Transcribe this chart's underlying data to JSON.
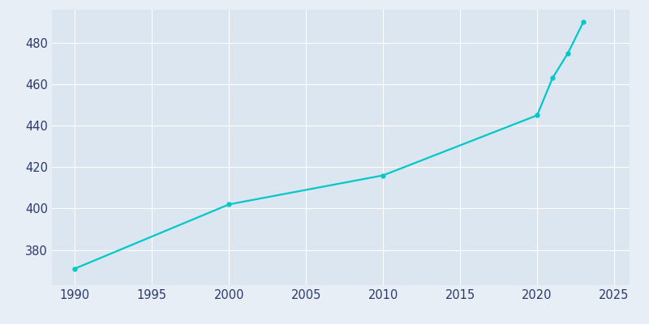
{
  "years": [
    1990,
    2000,
    2010,
    2020,
    2021,
    2022,
    2023
  ],
  "population": [
    371,
    402,
    416,
    445,
    463,
    475,
    490
  ],
  "line_color": "#00C8C8",
  "bg_color": "#E8EEF5",
  "plot_bg_color": "#DCE6F0",
  "text_color": "#2B3A6B",
  "xlim": [
    1988.5,
    2026
  ],
  "ylim": [
    363,
    496
  ],
  "xticks": [
    1990,
    1995,
    2000,
    2005,
    2010,
    2015,
    2020,
    2025
  ],
  "yticks": [
    380,
    400,
    420,
    440,
    460,
    480
  ],
  "grid_color": "#FFFFFF",
  "line_width": 1.6,
  "marker_size": 3.5
}
